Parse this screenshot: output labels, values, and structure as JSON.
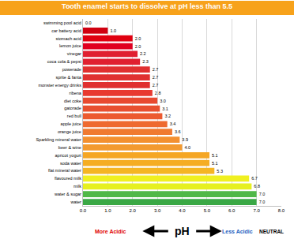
{
  "chart_data": {
    "type": "bar",
    "orientation": "horizontal",
    "title": "Tooth enamel starts to dissolve at pH less than 5.5",
    "categories": [
      "swimming pool acid",
      "car battery acid",
      "stomach acid",
      "lemon juice",
      "vinegar",
      "coca cola & pepsi",
      "powerade",
      "sprite & fanta",
      "monster energy drinks",
      "ribena",
      "diet coke",
      "gatorade",
      "red bull",
      "apple juice",
      "orange juice",
      "Sparkling mineral water",
      "beer & wine",
      "apricot yogurt",
      "soda water",
      "flat mineral water",
      "flavoured milk",
      "milk",
      "water & sugar",
      "water"
    ],
    "values": [
      0.0,
      1.0,
      2.0,
      2.0,
      2.2,
      2.3,
      2.7,
      2.7,
      2.7,
      2.8,
      3.0,
      3.1,
      3.2,
      3.4,
      3.6,
      3.9,
      4.0,
      5.1,
      5.1,
      5.3,
      6.7,
      6.8,
      7.0,
      7.0
    ],
    "value_labels": [
      "0.0",
      "1.0",
      "2.0",
      "2.0",
      "2.2",
      "2.3",
      "2.7",
      "2.7",
      "2.7",
      "2.8",
      "3.0",
      "3.1",
      "3.2",
      "3.4",
      "3.6",
      "3.9",
      "4.0",
      "5.1",
      "5.1",
      "5.3",
      "6.7",
      "6.8",
      "7.0",
      "7.0"
    ],
    "colors": [
      "#c00000",
      "#d00010",
      "#e00010",
      "#e00020",
      "#e02030",
      "#e02030",
      "#e03030",
      "#e03030",
      "#e03030",
      "#e83a30",
      "#e84a30",
      "#e85030",
      "#ec5a30",
      "#ee6a30",
      "#f07a30",
      "#f39030",
      "#f39a30",
      "#f5a623",
      "#f5ad23",
      "#f5b523",
      "#f0f020",
      "#e6f020",
      "#50b848",
      "#3aa845"
    ],
    "data_labels": true,
    "xlim": [
      0,
      8
    ],
    "xticks": [
      {
        "value": 0,
        "label": "0.0"
      },
      {
        "value": 1,
        "label": "1.0"
      },
      {
        "value": 2,
        "label": "2.0"
      },
      {
        "value": 3,
        "label": "3.0"
      },
      {
        "value": 4,
        "label": "4.0"
      },
      {
        "value": 5,
        "label": "5.0"
      },
      {
        "value": 6,
        "label": "6.0"
      },
      {
        "value": 7,
        "label": "7.0"
      },
      {
        "value": 8,
        "label": "8.0"
      }
    ],
    "grid": true,
    "annotations": [
      {
        "text": "More Acidic",
        "color": "#e00000"
      },
      {
        "text": "pH",
        "color": "#000000"
      },
      {
        "text": "Less Acidic",
        "color": "#1f5fbf"
      },
      {
        "text": "NEUTRAL",
        "color": "#000000"
      }
    ]
  }
}
